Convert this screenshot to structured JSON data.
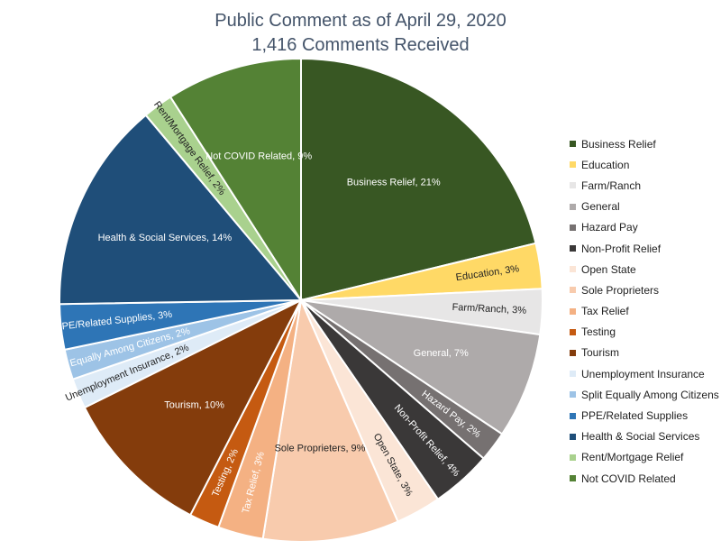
{
  "chart_data": {
    "type": "pie",
    "title": "Public Comment as of April 29, 2020",
    "subtitle": "1,416 Comments Received",
    "legend_position": "right",
    "slices": [
      {
        "name": "Business Relief",
        "value": 21,
        "label": "Business Relief, 21%",
        "color": "#385723",
        "label_color": "#ffffff"
      },
      {
        "name": "Education",
        "value": 3,
        "label": "Education, 3%",
        "color": "#ffd966",
        "label_color": "#222222"
      },
      {
        "name": "Farm/Ranch",
        "value": 3,
        "label": "Farm/Ranch, 3%",
        "color": "#e7e6e6",
        "label_color": "#222222"
      },
      {
        "name": "General",
        "value": 7,
        "label": "General, 7%",
        "color": "#aeaaaa",
        "label_color": "#ffffff"
      },
      {
        "name": "Hazard Pay",
        "value": 2,
        "label": "Hazard Pay, 2%",
        "color": "#767171",
        "label_color": "#ffffff"
      },
      {
        "name": "Non-Profit Relief",
        "value": 4,
        "label": "Non-Profit Relief, 4%",
        "color": "#3a3838",
        "label_color": "#ffffff"
      },
      {
        "name": "Open State",
        "value": 3,
        "label": "Open State, 3%",
        "color": "#fbe5d6",
        "label_color": "#222222"
      },
      {
        "name": "Sole Proprieters",
        "value": 9,
        "label": "Sole Proprieters, 9%",
        "color": "#f8cbad",
        "label_color": "#222222"
      },
      {
        "name": "Tax Relief",
        "value": 3,
        "label": "Tax Relief, 3%",
        "color": "#f4b183",
        "label_color": "#ffffff"
      },
      {
        "name": "Testing",
        "value": 2,
        "label": "Testing, 2%",
        "color": "#c55a11",
        "label_color": "#ffffff"
      },
      {
        "name": "Tourism",
        "value": 10,
        "label": "Tourism, 10%",
        "color": "#843c0c",
        "label_color": "#ffffff"
      },
      {
        "name": "Unemployment Insurance",
        "value": 2,
        "label": "Unemployment Insurance, 2%",
        "color": "#deebf7",
        "label_color": "#222222"
      },
      {
        "name": "Split Equally Among Citizens",
        "value": 2,
        "label": "Split Equally Among Citizens, 2%",
        "color": "#9dc3e6",
        "label_color": "#ffffff"
      },
      {
        "name": "PPE/Related Supplies",
        "value": 3,
        "label": "PPE/Related Supplies, 3%",
        "color": "#2e75b6",
        "label_color": "#ffffff"
      },
      {
        "name": "Health & Social Services",
        "value": 14,
        "label": "Health & Social Services, 14%",
        "color": "#1f4e79",
        "label_color": "#ffffff"
      },
      {
        "name": "Rent/Mortgage Relief",
        "value": 2,
        "label": "Rent/Mortgage Relief, 2%",
        "color": "#a9d18e",
        "label_color": "#222222"
      },
      {
        "name": "Not COVID Related",
        "value": 9,
        "label": "Not COVID Related, 9%",
        "color": "#548235",
        "label_color": "#ffffff"
      }
    ]
  }
}
